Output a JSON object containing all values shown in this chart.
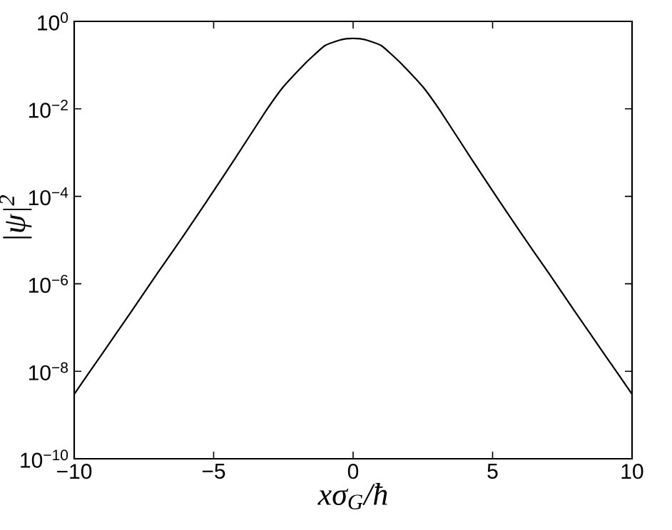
{
  "chart_data": {
    "type": "line",
    "xlabel": "xσ$_{G}$/ħ",
    "ylabel": "|ψ|$^{2}$",
    "log": "y",
    "xlim": [
      -10,
      10
    ],
    "ylim": [
      1e-10,
      1
    ],
    "xticks": [
      {
        "value": -10,
        "label": "−10"
      },
      {
        "value": -5,
        "label": "−5"
      },
      0,
      5,
      10
    ],
    "yticks": [
      {
        "value": 1e-10,
        "label": "10$^{−10}$"
      },
      {
        "value": 1e-08,
        "label": "10$^{−8}$"
      },
      {
        "value": 1e-06,
        "label": "10$^{−6}$"
      },
      {
        "value": 0.0001,
        "label": "10$^{−4}$"
      },
      {
        "value": 0.01,
        "label": "10$^{−2}$"
      },
      {
        "value": 1,
        "label": "10$^{0}$"
      }
    ],
    "grid": false,
    "marker": "none",
    "line_style": "solid",
    "series": [
      {
        "color": "#000000",
        "x": [
          -10,
          -9,
          -8,
          -7,
          -6,
          -5.28,
          -4.26,
          -3.15,
          -2.5,
          -1.78,
          -1.4,
          -1.01,
          -0.5,
          -0.25,
          0,
          0.25,
          0.5,
          1.01,
          1.4,
          1.78,
          2.5,
          3.15,
          4.26,
          5.28,
          6,
          7,
          8,
          9,
          10
        ],
        "values": [
          3e-09,
          2.5e-08,
          2.1e-07,
          1.8e-06,
          1.5e-05,
          7.2e-05,
          0.00069,
          0.0085,
          0.032,
          0.1,
          0.17,
          0.28,
          0.37,
          0.4,
          0.41,
          0.4,
          0.37,
          0.28,
          0.17,
          0.1,
          0.032,
          0.0085,
          0.00069,
          7.2e-05,
          1.5e-05,
          1.8e-06,
          2.1e-07,
          2.5e-08,
          3e-09
        ]
      }
    ]
  }
}
